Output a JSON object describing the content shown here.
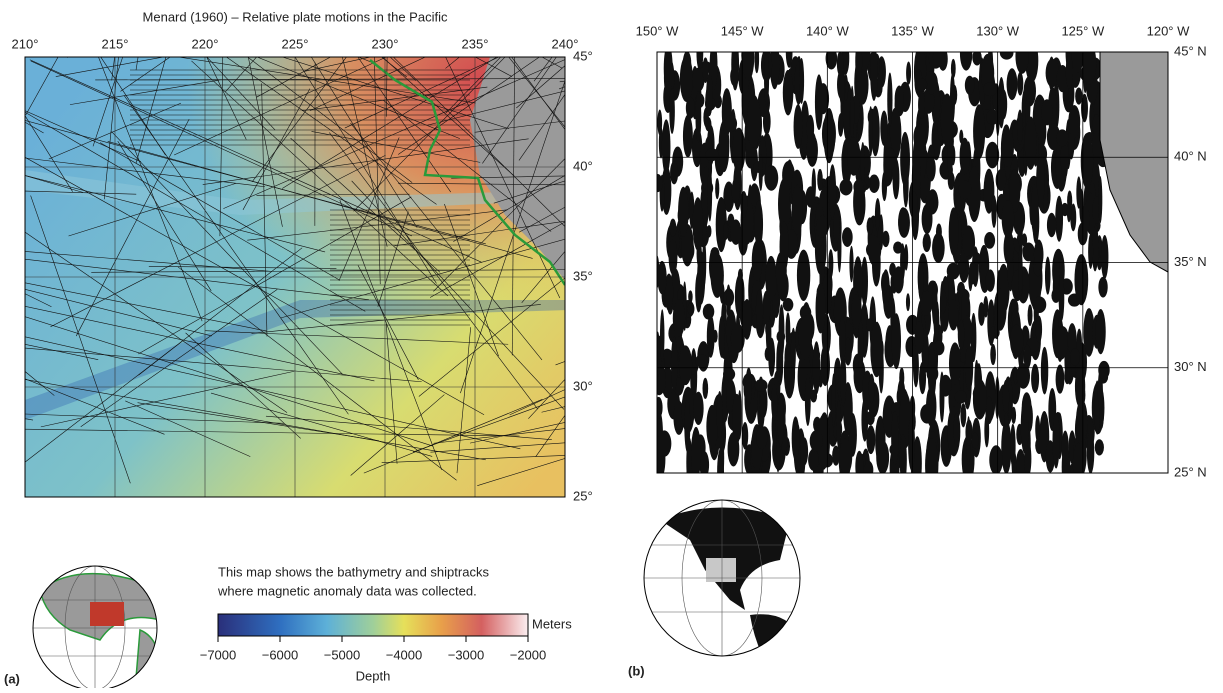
{
  "panel_a": {
    "title": "Menard (1960) – Relative plate motions in the Pacific",
    "lon_ticks": [
      {
        "value": 210,
        "label": "210°"
      },
      {
        "value": 215,
        "label": "215°"
      },
      {
        "value": 220,
        "label": "220°"
      },
      {
        "value": 225,
        "label": "225°"
      },
      {
        "value": 230,
        "label": "230°"
      },
      {
        "value": 235,
        "label": "235°"
      },
      {
        "value": 240,
        "label": "240°"
      }
    ],
    "lat_ticks": [
      {
        "value": 45,
        "label": "45°"
      },
      {
        "value": 40,
        "label": "40°"
      },
      {
        "value": 35,
        "label": "35°"
      },
      {
        "value": 30,
        "label": "30°"
      },
      {
        "value": 25,
        "label": "25°"
      }
    ],
    "caption": [
      "This map shows the bathymetry and shiptracks",
      "where magnetic anomaly data was collected."
    ],
    "colorbar": {
      "lim": [
        -7000,
        -2000
      ],
      "ticks": [
        {
          "value": -7000,
          "label": "−7000"
        },
        {
          "value": -6000,
          "label": "−6000"
        },
        {
          "value": -5000,
          "label": "−5000"
        },
        {
          "value": -4000,
          "label": "−4000"
        },
        {
          "value": -3000,
          "label": "−3000"
        },
        {
          "value": -2000,
          "label": "−2000"
        }
      ],
      "unit": "Meters",
      "label": "Depth"
    },
    "panel_label": "(a)"
  },
  "panel_b": {
    "lon_ticks": [
      {
        "value": -150,
        "label": "150° W"
      },
      {
        "value": -145,
        "label": "145° W"
      },
      {
        "value": -140,
        "label": "140° W"
      },
      {
        "value": -135,
        "label": "135° W"
      },
      {
        "value": -130,
        "label": "130° W"
      },
      {
        "value": -125,
        "label": "125° W"
      },
      {
        "value": -120,
        "label": "120° W"
      }
    ],
    "lat_ticks": [
      {
        "value": 45,
        "label": "45° N"
      },
      {
        "value": 40,
        "label": "40° N"
      },
      {
        "value": 35,
        "label": "35° N"
      },
      {
        "value": 30,
        "label": "30° N"
      },
      {
        "value": 25,
        "label": "25° N"
      }
    ],
    "panel_label": "(b)"
  }
}
